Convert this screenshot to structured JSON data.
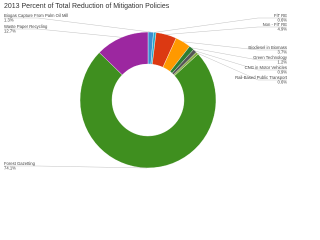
{
  "chart_data": {
    "type": "donut",
    "title": "2013 Percent of Total Reduction of Mitigation Policies",
    "categories": [
      "Biogas Capture From Palm Oil Mill",
      "FiT RE",
      "Non - FiT RE",
      "Biodiesel in Biomass",
      "Green Technology",
      "CNG in Motor Vehicles",
      "Rail-Based Public Transport",
      "Forest Gazetting",
      "Waste Paper Recycling"
    ],
    "values": [
      1.3,
      0.6,
      4.9,
      3.7,
      1.2,
      0.9,
      0.6,
      74.1,
      12.7
    ],
    "value_labels": [
      "1.3%",
      "0.6%",
      "4.9%",
      "3.7%",
      "1.2%",
      "0.9%",
      "0.6%",
      "74.1%",
      "12.7%"
    ],
    "colors": [
      "#3b8ed0",
      "#22aacc",
      "#dc3912",
      "#ff9900",
      "#2e7d32",
      "#555555",
      "#88aa44",
      "#3f8f1f",
      "#9c27a0"
    ]
  }
}
